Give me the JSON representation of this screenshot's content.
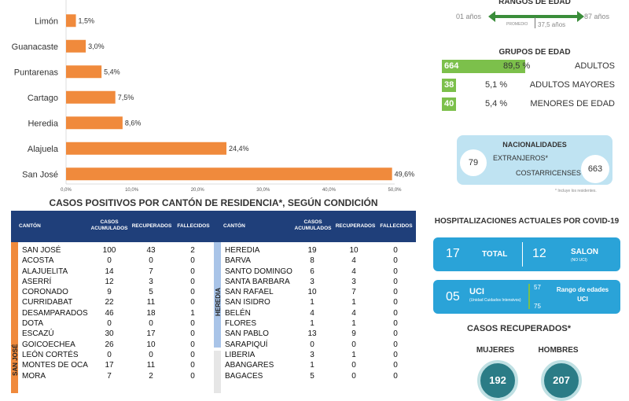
{
  "chart_data": {
    "type": "bar",
    "orientation": "horizontal",
    "categories": [
      "Limón",
      "Guanacaste",
      "Puntarenas",
      "Cartago",
      "Heredia",
      "Alajuela",
      "San José"
    ],
    "values": [
      1.5,
      3.0,
      5.4,
      7.5,
      8.6,
      24.4,
      49.6
    ],
    "value_labels": [
      "1,5%",
      "3,0%",
      "5,4%",
      "7,5%",
      "8,6%",
      "24,4%",
      "49,6%"
    ],
    "xlim": [
      0,
      50
    ],
    "ticks": [
      0,
      10,
      20,
      30,
      40,
      50
    ],
    "tick_labels": [
      "0,0%",
      "10,0%",
      "20,0%",
      "30,0%",
      "40,0%",
      "50,0%"
    ],
    "color": "#f08a3c",
    "grid": false
  },
  "table": {
    "title": "CASOS POSITIVOS POR CANTÓN DE RESIDENCIA*, SEGÚN CONDICIÓN",
    "headers": {
      "canton": "CANTÓN",
      "acum": "CASOS ACUMULADOS",
      "recup": "RECUPERADOS",
      "fall": "FALLECIDOS"
    },
    "header_color": "#1f3f7a",
    "left_group_label": "SAN JOSÉ",
    "left_group_color": "#f08a3c",
    "right_group_label": "HEREDIA",
    "right_group_color": "#a9c4e8",
    "left_rows": [
      {
        "c": "SAN JOSÉ",
        "a": "100",
        "r": "43",
        "f": "2"
      },
      {
        "c": "ACOSTA",
        "a": "0",
        "r": "0",
        "f": "0"
      },
      {
        "c": "ALAJUELITA",
        "a": "14",
        "r": "7",
        "f": "0"
      },
      {
        "c": "ASERRÍ",
        "a": "12",
        "r": "3",
        "f": "0"
      },
      {
        "c": "CORONADO",
        "a": "9",
        "r": "5",
        "f": "0"
      },
      {
        "c": "CURRIDABAT",
        "a": "22",
        "r": "11",
        "f": "0"
      },
      {
        "c": "DESAMPARADOS",
        "a": "46",
        "r": "18",
        "f": "1"
      },
      {
        "c": "DOTA",
        "a": "0",
        "r": "0",
        "f": "0"
      },
      {
        "c": "ESCAZÚ",
        "a": "30",
        "r": "17",
        "f": "0"
      },
      {
        "c": "GOICOECHEA",
        "a": "26",
        "r": "10",
        "f": "0"
      },
      {
        "c": "LEÓN CORTÉS",
        "a": "0",
        "r": "0",
        "f": "0"
      },
      {
        "c": "MONTES DE OCA",
        "a": "17",
        "r": "11",
        "f": "0"
      },
      {
        "c": "MORA",
        "a": "7",
        "r": "2",
        "f": "0"
      }
    ],
    "right_rows": [
      {
        "c": "HEREDIA",
        "a": "19",
        "r": "10",
        "f": "0"
      },
      {
        "c": "BARVA",
        "a": "8",
        "r": "4",
        "f": "0"
      },
      {
        "c": "SANTO DOMINGO",
        "a": "6",
        "r": "4",
        "f": "0"
      },
      {
        "c": "SANTA BARBARA",
        "a": "3",
        "r": "3",
        "f": "0"
      },
      {
        "c": "SAN RAFAEL",
        "a": "10",
        "r": "7",
        "f": "0"
      },
      {
        "c": "SAN ISIDRO",
        "a": "1",
        "r": "1",
        "f": "0"
      },
      {
        "c": "BELÉN",
        "a": "4",
        "r": "4",
        "f": "0"
      },
      {
        "c": "FLORES",
        "a": "1",
        "r": "1",
        "f": "0"
      },
      {
        "c": "SAN PABLO",
        "a": "13",
        "r": "9",
        "f": "0"
      },
      {
        "c": "SARAPIQUÍ",
        "a": "0",
        "r": "0",
        "f": "0"
      },
      {
        "c": "LIBERIA",
        "a": "3",
        "r": "1",
        "f": "0"
      },
      {
        "c": "ABANGARES",
        "a": "1",
        "r": "0",
        "f": "0"
      },
      {
        "c": "BAGACES",
        "a": "5",
        "r": "0",
        "f": "0"
      }
    ]
  },
  "rangos": {
    "title": "RANGOS DE EDAD",
    "min": "01 años",
    "max": "87 años",
    "prom_label": "PROMEDIO",
    "prom": "37,5 años"
  },
  "grupos": {
    "title": "GRUPOS DE EDAD",
    "items": [
      {
        "n": "664",
        "pct": "89,5 %",
        "label": "ADULTOS",
        "fill": 0.895
      },
      {
        "n": "38",
        "pct": "5,1  %",
        "label": "ADULTOS MAYORES",
        "fill": 0.051
      },
      {
        "n": "40",
        "pct": "5,4 %",
        "label": "MENORES DE EDAD",
        "fill": 0.054
      }
    ]
  },
  "nacionalidades": {
    "title": "NACIONALIDADES",
    "extr_n": "79",
    "extr_label": "EXTRANJEROS*",
    "cost_label": "COSTARRICENSES",
    "cost_n": "663",
    "note": "* Incluye los residentes."
  },
  "hosp": {
    "title": "HOSPITALIZACIONES ACTUALES POR COVID-19",
    "total_n": "17",
    "total_label": "TOTAL",
    "salon_n": "12",
    "salon_label": "SALON",
    "salon_sub": "(NO UCI)",
    "uci_n": "05",
    "uci_label": "UCI",
    "uci_sub": "(Unidad Cuidados Intensivos)",
    "age_hi": "57",
    "age_lo": "75",
    "age_label": "Rango de edades UCI"
  },
  "recuperados": {
    "title": "CASOS RECUPERADOS*",
    "m_label": "MUJERES",
    "h_label": "HOMBRES",
    "m_n": "192",
    "h_n": "207"
  }
}
